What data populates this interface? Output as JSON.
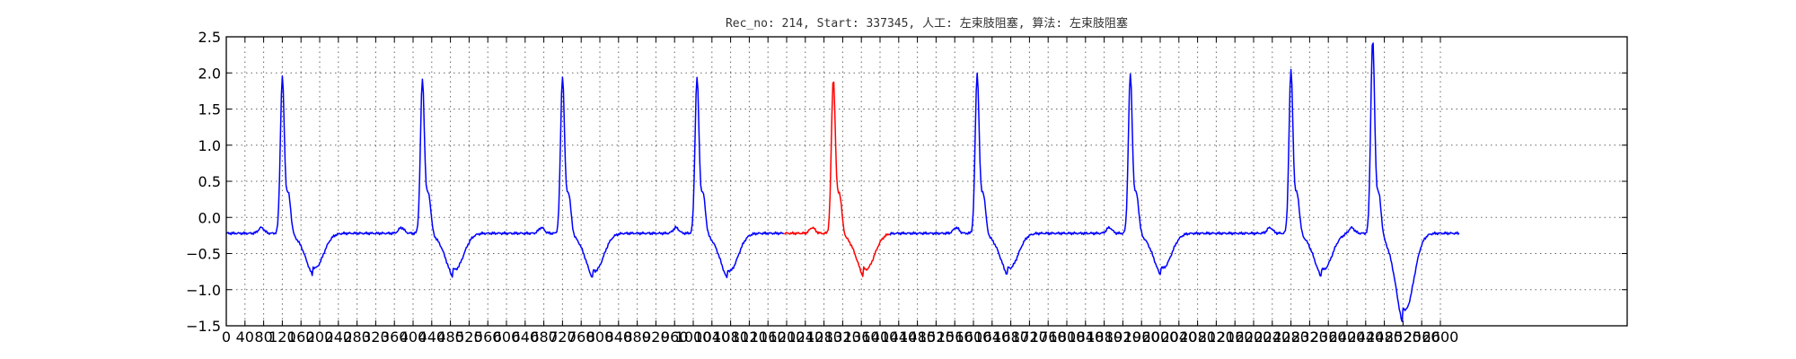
{
  "chart_data": {
    "type": "line",
    "title": "Rec_no: 214, Start: 337345, 人工: 左束肢阻塞, 算法: 左束肢阻塞",
    "xlabel": "",
    "ylabel": "",
    "xlim": [
      0,
      3000
    ],
    "ylim": [
      -1.5,
      2.5
    ],
    "grid": true,
    "y_ticks": [
      -1.5,
      -1.0,
      -0.5,
      0.0,
      0.5,
      1.0,
      1.5,
      2.0,
      2.5
    ],
    "y_tick_labels": [
      "−1.5",
      "−1.0",
      "−0.5",
      "0.0",
      "0.5",
      "1.0",
      "1.5",
      "2.0",
      "2.5"
    ],
    "x_ticks": [
      0,
      40,
      80,
      120,
      160,
      200,
      240,
      280,
      320,
      360,
      400,
      440,
      480,
      520,
      560,
      600,
      640,
      680,
      720,
      760,
      800,
      840,
      880,
      920,
      960,
      1000,
      1040,
      1080,
      1120,
      1160,
      1200,
      1240,
      1280,
      1320,
      1360,
      1400,
      1440,
      1480,
      1520,
      1560,
      1600,
      1640,
      1680,
      1720,
      1760,
      1800,
      1840,
      1880,
      1920,
      1960,
      2000,
      2040,
      2080,
      2120,
      2160,
      2200,
      2240,
      2280,
      2320,
      2360,
      2400,
      2440,
      2480,
      2520,
      2560,
      2600
    ],
    "x_tick_labels": [
      "0",
      "40",
      "80",
      "120",
      "160",
      "200",
      "240",
      "280",
      "320",
      "360",
      "400",
      "440",
      "480",
      "520",
      "560",
      "600",
      "640",
      "680",
      "720",
      "760",
      "800",
      "840",
      "880",
      "920",
      "960",
      "1000",
      "1040",
      "1080",
      "1120",
      "1160",
      "1200",
      "1240",
      "1280",
      "1320",
      "1360",
      "1400",
      "1440",
      "1480",
      "1520",
      "1560",
      "1600",
      "1640",
      "1680",
      "1720",
      "1760",
      "1800",
      "1840",
      "1880",
      "1920",
      "1960",
      "2000",
      "2040",
      "2080",
      "2120",
      "2160",
      "2200",
      "2240",
      "2280",
      "2320",
      "2360",
      "2400",
      "2440",
      "2480",
      "2520",
      "2560",
      "2600"
    ],
    "baseline": -0.22,
    "beats": [
      {
        "r": 120,
        "peak": 1.93,
        "trough": -0.7,
        "color": "#0000ff"
      },
      {
        "r": 420,
        "peak": 1.9,
        "trough": -0.72,
        "color": "#0000ff"
      },
      {
        "r": 720,
        "peak": 1.94,
        "trough": -0.74,
        "color": "#0000ff"
      },
      {
        "r": 1008,
        "peak": 1.93,
        "trough": -0.74,
        "color": "#0000ff"
      },
      {
        "r": 1300,
        "peak": 1.91,
        "trough": -0.72,
        "color": "#ff0000"
      },
      {
        "r": 1608,
        "peak": 1.98,
        "trough": -0.7,
        "color": "#0000ff"
      },
      {
        "r": 1936,
        "peak": 1.97,
        "trough": -0.7,
        "color": "#0000ff"
      },
      {
        "r": 2280,
        "peak": 2.03,
        "trough": -0.72,
        "color": "#0000ff"
      },
      {
        "r": 2455,
        "peak": 2.45,
        "trough": -1.28,
        "color": "#0000ff"
      }
    ],
    "highlight_range": [
      1195,
      1420
    ],
    "x_end": 2640,
    "series": [
      {
        "color": "#0000ff"
      },
      {
        "color": "#ff0000"
      }
    ]
  }
}
